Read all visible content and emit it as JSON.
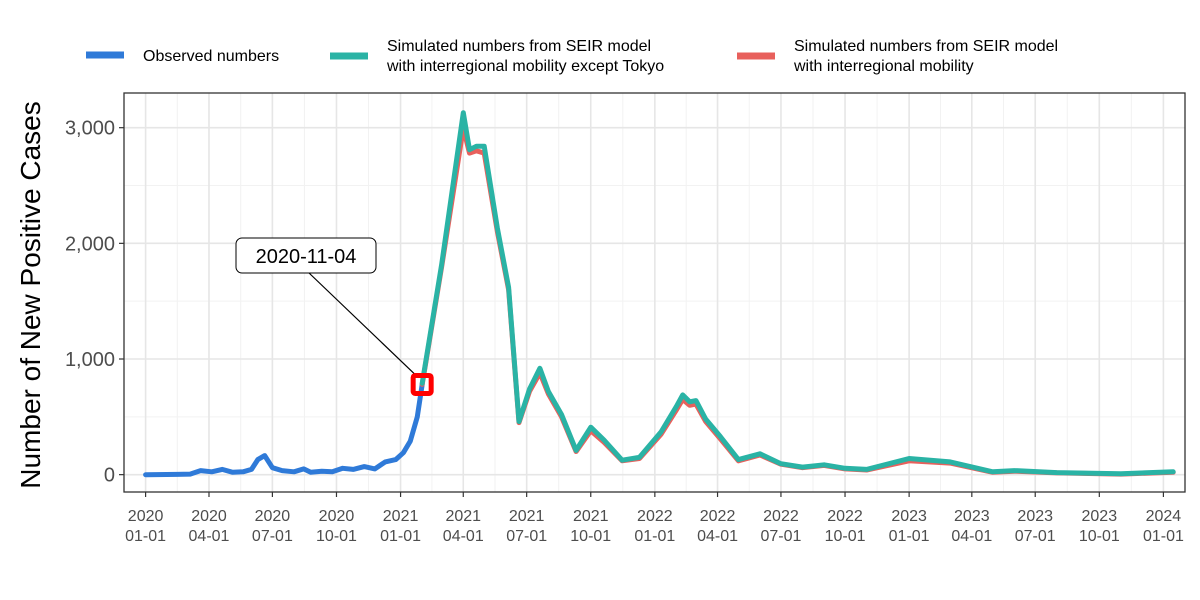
{
  "chart_data": {
    "type": "line",
    "title": "",
    "xlabel": "",
    "ylabel": "Number of New Positive Cases",
    "ylim": [
      -150,
      3300
    ],
    "xlim": [
      "2019-12-01",
      "2024-02-01"
    ],
    "grid": true,
    "legend_position": "top",
    "x_ticks": [
      {
        "date": "2020-01-01",
        "year": "2020",
        "md": "01-01"
      },
      {
        "date": "2020-04-01",
        "year": "2020",
        "md": "04-01"
      },
      {
        "date": "2020-07-01",
        "year": "2020",
        "md": "07-01"
      },
      {
        "date": "2020-10-01",
        "year": "2020",
        "md": "10-01"
      },
      {
        "date": "2021-01-01",
        "year": "2021",
        "md": "01-01"
      },
      {
        "date": "2021-04-01",
        "year": "2021",
        "md": "04-01"
      },
      {
        "date": "2021-07-01",
        "year": "2021",
        "md": "07-01"
      },
      {
        "date": "2021-10-01",
        "year": "2021",
        "md": "10-01"
      },
      {
        "date": "2022-01-01",
        "year": "2022",
        "md": "01-01"
      },
      {
        "date": "2022-04-01",
        "year": "2022",
        "md": "04-01"
      },
      {
        "date": "2022-07-01",
        "year": "2022",
        "md": "07-01"
      },
      {
        "date": "2022-10-01",
        "year": "2022",
        "md": "10-01"
      },
      {
        "date": "2023-01-01",
        "year": "2023",
        "md": "01-01"
      },
      {
        "date": "2023-04-01",
        "year": "2023",
        "md": "04-01"
      },
      {
        "date": "2023-07-01",
        "year": "2023",
        "md": "07-01"
      },
      {
        "date": "2023-10-01",
        "year": "2023",
        "md": "10-01"
      },
      {
        "date": "2024-01-01",
        "year": "2024",
        "md": "01-01"
      }
    ],
    "y_ticks": [
      {
        "value": 0,
        "label": "0"
      },
      {
        "value": 1000,
        "label": "1,000"
      },
      {
        "value": 2000,
        "label": "2,000"
      },
      {
        "value": 3000,
        "label": "3,000"
      }
    ],
    "series": [
      {
        "name": "Observed numbers",
        "color": "#2F7AD8",
        "points": [
          [
            "2020-01-01",
            0
          ],
          [
            "2020-02-15",
            2
          ],
          [
            "2020-03-05",
            5
          ],
          [
            "2020-03-20",
            35
          ],
          [
            "2020-04-05",
            25
          ],
          [
            "2020-04-20",
            45
          ],
          [
            "2020-05-05",
            20
          ],
          [
            "2020-05-20",
            25
          ],
          [
            "2020-06-01",
            45
          ],
          [
            "2020-06-10",
            130
          ],
          [
            "2020-06-20",
            165
          ],
          [
            "2020-07-01",
            60
          ],
          [
            "2020-07-15",
            35
          ],
          [
            "2020-08-01",
            25
          ],
          [
            "2020-08-15",
            50
          ],
          [
            "2020-08-25",
            20
          ],
          [
            "2020-09-10",
            30
          ],
          [
            "2020-09-25",
            25
          ],
          [
            "2020-10-10",
            55
          ],
          [
            "2020-10-25",
            45
          ],
          [
            "2020-11-10",
            70
          ],
          [
            "2020-11-25",
            50
          ],
          [
            "2020-12-10",
            110
          ],
          [
            "2020-12-25",
            130
          ],
          [
            "2021-01-05",
            190
          ],
          [
            "2021-01-15",
            290
          ],
          [
            "2021-01-25",
            500
          ],
          [
            "2021-02-01",
            780
          ]
        ]
      },
      {
        "name": "Simulated numbers from SEIR model with interregional mobility",
        "color": "#E8605C",
        "points": [
          [
            "2021-02-01",
            780
          ],
          [
            "2021-03-01",
            1800
          ],
          [
            "2021-04-01",
            3000
          ],
          [
            "2021-04-10",
            2780
          ],
          [
            "2021-04-20",
            2800
          ],
          [
            "2021-05-01",
            2780
          ],
          [
            "2021-05-20",
            2100
          ],
          [
            "2021-06-05",
            1600
          ],
          [
            "2021-06-20",
            450
          ],
          [
            "2021-07-05",
            720
          ],
          [
            "2021-07-20",
            880
          ],
          [
            "2021-08-01",
            700
          ],
          [
            "2021-08-20",
            500
          ],
          [
            "2021-09-10",
            200
          ],
          [
            "2021-10-01",
            380
          ],
          [
            "2021-10-20",
            280
          ],
          [
            "2021-11-15",
            120
          ],
          [
            "2021-12-10",
            140
          ],
          [
            "2022-01-10",
            350
          ],
          [
            "2022-02-01",
            560
          ],
          [
            "2022-02-10",
            650
          ],
          [
            "2022-02-20",
            600
          ],
          [
            "2022-03-01",
            610
          ],
          [
            "2022-03-15",
            460
          ],
          [
            "2022-04-05",
            310
          ],
          [
            "2022-05-01",
            120
          ],
          [
            "2022-06-01",
            170
          ],
          [
            "2022-07-01",
            90
          ],
          [
            "2022-08-01",
            60
          ],
          [
            "2022-09-01",
            80
          ],
          [
            "2022-10-01",
            50
          ],
          [
            "2022-11-01",
            40
          ],
          [
            "2023-01-01",
            120
          ],
          [
            "2023-03-01",
            100
          ],
          [
            "2023-05-01",
            20
          ],
          [
            "2023-06-01",
            30
          ],
          [
            "2023-08-01",
            15
          ],
          [
            "2023-11-01",
            5
          ],
          [
            "2024-01-15",
            20
          ]
        ]
      },
      {
        "name": "Simulated numbers from SEIR model with interregional mobility except Tokyo",
        "color": "#2AB3A5",
        "points": [
          [
            "2021-02-01",
            790
          ],
          [
            "2021-03-01",
            1820
          ],
          [
            "2021-04-01",
            3130
          ],
          [
            "2021-04-10",
            2810
          ],
          [
            "2021-04-20",
            2840
          ],
          [
            "2021-05-01",
            2840
          ],
          [
            "2021-05-20",
            2130
          ],
          [
            "2021-06-05",
            1620
          ],
          [
            "2021-06-20",
            460
          ],
          [
            "2021-07-05",
            740
          ],
          [
            "2021-07-20",
            920
          ],
          [
            "2021-08-01",
            720
          ],
          [
            "2021-08-20",
            520
          ],
          [
            "2021-09-10",
            210
          ],
          [
            "2021-10-01",
            410
          ],
          [
            "2021-10-20",
            300
          ],
          [
            "2021-11-15",
            125
          ],
          [
            "2021-12-10",
            150
          ],
          [
            "2022-01-10",
            370
          ],
          [
            "2022-02-01",
            590
          ],
          [
            "2022-02-10",
            690
          ],
          [
            "2022-02-20",
            630
          ],
          [
            "2022-03-01",
            640
          ],
          [
            "2022-03-15",
            480
          ],
          [
            "2022-04-05",
            330
          ],
          [
            "2022-05-01",
            130
          ],
          [
            "2022-06-01",
            180
          ],
          [
            "2022-07-01",
            95
          ],
          [
            "2022-08-01",
            65
          ],
          [
            "2022-09-01",
            85
          ],
          [
            "2022-10-01",
            55
          ],
          [
            "2022-11-01",
            45
          ],
          [
            "2023-01-01",
            140
          ],
          [
            "2023-03-01",
            110
          ],
          [
            "2023-05-01",
            25
          ],
          [
            "2023-06-01",
            35
          ],
          [
            "2023-08-01",
            18
          ],
          [
            "2023-11-01",
            8
          ],
          [
            "2024-01-15",
            25
          ]
        ]
      }
    ],
    "legend": [
      {
        "label_lines": [
          "Observed numbers"
        ],
        "color": "#2F7AD8"
      },
      {
        "label_lines": [
          "Simulated numbers from SEIR model",
          "with interregional mobility except Tokyo"
        ],
        "color": "#2AB3A5"
      },
      {
        "label_lines": [
          "Simulated numbers from SEIR model",
          "with interregional mobility"
        ],
        "color": "#E8605C"
      }
    ],
    "annotation": {
      "label": "2020-11-04",
      "date": "2021-02-01",
      "value": 780,
      "marker_color": "#FF0000"
    }
  }
}
